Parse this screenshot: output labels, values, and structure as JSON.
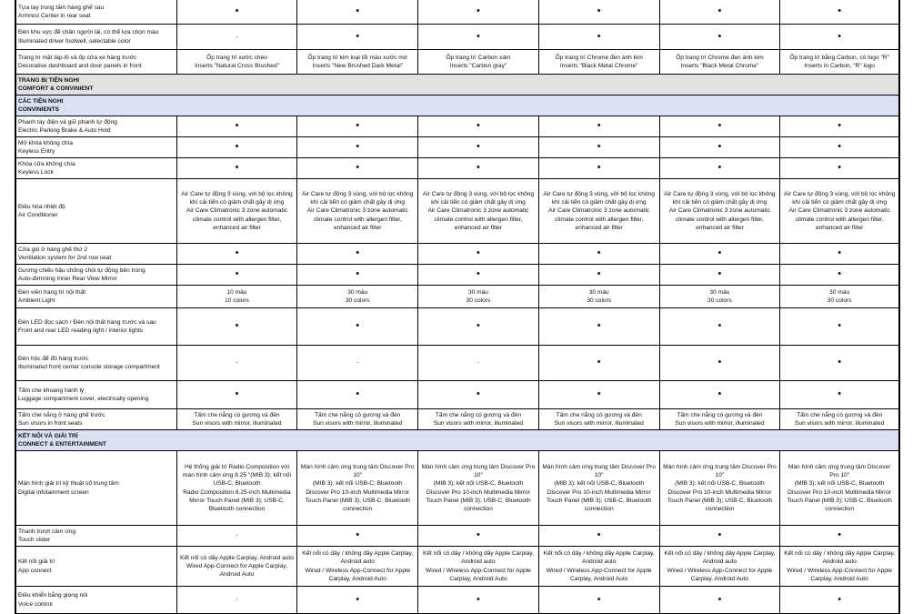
{
  "colors": {
    "section_gray": "#e1e1e1",
    "section_blue": "#d9e1f2"
  },
  "rows": [
    {
      "type": "item",
      "label": "Tựa tay trung tâm hàng ghế sau\nArmrest Center in rear seat",
      "values": [
        "•",
        "•",
        "•",
        "•",
        "•",
        "•"
      ]
    },
    {
      "type": "item",
      "label": "Đèn khu vực để chân người lái, có thể lựa chọn màu\nIlluminated driver footwell, selectable color",
      "values": [
        "-",
        "•",
        "•",
        "•",
        "•",
        "•"
      ]
    },
    {
      "type": "item",
      "label": "Trang trí mặt táp-lô và ốp cửa xe hàng trước\nDecorative dashboard and door panels in front",
      "values": [
        "Ốp trang trí xước chéo\nInserts \"Natural Cross Brushed\"",
        "Ốp trang trí kim loại tối màu xước mờ\nInserts \"New Brushed Dark Metal\"",
        "Ốp trang trí Carbon xám\nInserts \"Carbon gray\"",
        "Ốp trang trí Chrome đen ánh kim\nInserts \"Black Metal Chrome\"",
        "Ốp trang trí Chrome đen ánh kim\nInserts \"Black Metal Chrome\"",
        "Ốp trang trí bằng Carbon, có logo \"R\"\nInserts in Carbon, \"R\" logo"
      ]
    },
    {
      "type": "section",
      "style": "gray",
      "label": "TRANG BỊ TIỆN NGHI\nCOMFORT & CONVINIENT"
    },
    {
      "type": "section",
      "style": "blue",
      "label": "CÁC TIỆN NGHI\nCONVINIENTS"
    },
    {
      "type": "item",
      "label": "Phanh tay điện và giữ phanh tự động\nElectric Parking Brake & Auto Hold",
      "values": [
        "•",
        "•",
        "•",
        "•",
        "•",
        "•"
      ]
    },
    {
      "type": "item",
      "label": "Mở khóa không chìa\nKeyless Entry",
      "values": [
        "•",
        "•",
        "•",
        "•",
        "•",
        "•"
      ]
    },
    {
      "type": "item",
      "label": "Khóa cửa không chìa\nKeyless Lock",
      "values": [
        "•",
        "•",
        "•",
        "•",
        "•",
        "•"
      ]
    },
    {
      "type": "item",
      "label": "Điều hòa nhiệt độ\nAir Conditioner",
      "values": [
        "Air Care tự động 3 vùng, với bộ lọc không khí cải tiến có giảm chất gây dị ứng\nAir Care Climatronic 3 zone automatic climate control with allergen filter, enhanced air filter",
        "Air Care tự động 3 vùng, với bộ lọc không khí cải tiến có giảm chất gây dị ứng\nAir Care Climatronic 3 zone automatic climate control with allergen filter, enhanced air filter",
        "Air Care tự động 3 vùng, với bộ lọc không khí cải tiến có giảm chất gây dị ứng\nAir Care Climatronic 3 zone automatic climate control with allergen filter, enhanced air filter",
        "Air Care tự động 3 vùng, với bộ lọc không khí cải tiến có giảm chất gây dị ứng\nAir Care Climatronic 3 zone automatic climate control with allergen filter, enhanced air filter",
        "Air Care tự động 3 vùng, với bộ lọc không khí cải tiến có giảm chất gây dị ứng\nAir Care Climatronic 3 zone automatic climate control with allergen filter, enhanced air filter",
        "Air Care tự động 3 vùng, với bộ lọc không khí cải tiến có giảm chất gây dị ứng\nAir Care Climatronic 3 zone automatic climate control with allergen filter, enhanced air filter"
      ]
    },
    {
      "type": "item",
      "label": "Cửa gió ở hàng ghế thứ 2\nVentilation system for 2nd row seat",
      "values": [
        "•",
        "•",
        "•",
        "•",
        "•",
        "•"
      ]
    },
    {
      "type": "item",
      "label": "Gương chiếu hậu chống chói tự động bên trong\nAuto-dimming Inner Rear View Mirror",
      "values": [
        "•",
        "•",
        "•",
        "•",
        "•",
        "•"
      ]
    },
    {
      "type": "item",
      "label": "Đèn viền trang trí nội thất\nAmbient Light",
      "values": [
        "10 màu\n10 colors",
        "30 màu\n30 colors",
        "30 màu\n30 colors",
        "30 màu\n30 colors",
        "30 màu\n30 colors",
        "30 màu\n30 colors"
      ]
    },
    {
      "type": "item",
      "label": "Đèn LED đọc sách / Đèn nội thất hàng trước và sau\nFront and rear LED reading light / interior lights",
      "values": [
        "•",
        "•",
        "•",
        "•",
        "•",
        "•"
      ]
    },
    {
      "type": "item",
      "label": "Đèn hộc để đồ hàng trước\nIlluminated front center console storage compartment",
      "values": [
        "-",
        "-",
        "-",
        "•",
        "•",
        "•"
      ]
    },
    {
      "type": "item",
      "label": "Tấm che khoang hành lý\nLuggage compartment cover, electrically opening",
      "values": [
        "•",
        "•",
        "•",
        "•",
        "•",
        "•"
      ]
    },
    {
      "type": "item",
      "label": "Tấm che nắng ở hàng ghế trước\nSun visors in front seats",
      "values": [
        "Tấm che nắng có gương và đèn\nSun visors with mirror, illuminated",
        "Tấm che nắng có gương và đèn\nSun visors with mirror, illuminated",
        "Tấm che nắng có gương và đèn\nSun visors with mirror, illuminated",
        "Tấm che nắng có gương và đèn\nSun visors with mirror, illuminated",
        "Tấm che nắng có gương và đèn\nSun visors with mirror, illuminated",
        "Tấm che nắng có gương và đèn\nSun visors with mirror, illuminated"
      ]
    },
    {
      "type": "section",
      "style": "blue",
      "label": "KẾT NỐI VÀ GIẢI TRÍ\nCONNECT & ENTERTAINMENT"
    },
    {
      "type": "item",
      "label": "Màn hình giải trí kỹ thuật số trung tâm\nDigital infotainment screen",
      "values": [
        "Hệ thống giải trí Radio Composition với màn hình cảm ứng 8.25 \"(MIB 3); kết nối USB-C, Bluetooth\nRadio Composition 8.25-inch Multimedia Mirror Touch Panel (MIB 3); USB-C, Bluetooth connection",
        "Màn hình cảm ứng trung tâm Discover Pro 10\"\n(MIB 3); kết nối USB-C, Bluetooth\nDiscover Pro 10-inch Multimedia Mirror Touch Panel (MIB 3); USB-C, Bluetooth connection",
        "Màn hình cảm ứng trung tâm Discover Pro 10\"\n(MIB 3); kết nối USB-C, Bluetooth\nDiscover Pro 10-inch Multimedia Mirror Touch Panel (MIB 3); USB-C, Bluetooth connection",
        "Màn hình cảm ứng trung tâm Discover Pro 10\"\n(MIB 3); kết nối USB-C, Bluetooth\nDiscover Pro 10-inch Multimedia Mirror Touch Panel (MIB 3); USB-C, Bluetooth connection",
        "Màn hình cảm ứng trung tâm Discover Pro 10\"\n(MIB 3); kết nối USB-C, Bluetooth\nDiscover Pro 10-inch Multimedia Mirror Touch Panel (MIB 3); USB-C, Bluetooth connection",
        "Màn hình cảm ứng trung tâm Discover Pro 10\"\n(MIB 3); kết nối USB-C, Bluetooth\nDiscover Pro 10-inch Multimedia Mirror Touch Panel (MIB 3); USB-C, Bluetooth connection"
      ]
    },
    {
      "type": "item",
      "label": "Thanh trượt cảm ứng\nTouch slider",
      "values": [
        "-",
        "•",
        "•",
        "•",
        "•",
        "•"
      ]
    },
    {
      "type": "item",
      "label": "Kết nối giải trí\nApp connect",
      "values": [
        "Kết nối có dây Apple Carplay, Android auto\nWired App-Connect for Apple Carplay, Android Auto",
        "Kết nối có dây / không dây Apple Carplay, Android auto\nWired / Wireless App-Connect for Apple Carplay, Android Auto",
        "Kết nối có dây / không dây Apple Carplay, Android auto\nWired / Wireless App-Connect for Apple Carplay, Android Auto",
        "Kết nối có dây / không dây Apple Carplay, Android auto\nWired / Wireless App-Connect for Apple Carplay, Android Auto",
        "Kết nối có dây / không dây Apple Carplay, Android auto\nWired / Wireless App-Connect for Apple Carplay, Android Auto",
        "Kết nối có dây / không dây Apple Carplay, Android auto\nWired / Wireless App-Connect for Apple Carplay, Android Auto"
      ]
    },
    {
      "type": "item",
      "label": "Điều khiển bằng giọng nói\nVoice control",
      "values": [
        "-",
        "•",
        "•",
        "•",
        "•",
        "•"
      ]
    }
  ]
}
